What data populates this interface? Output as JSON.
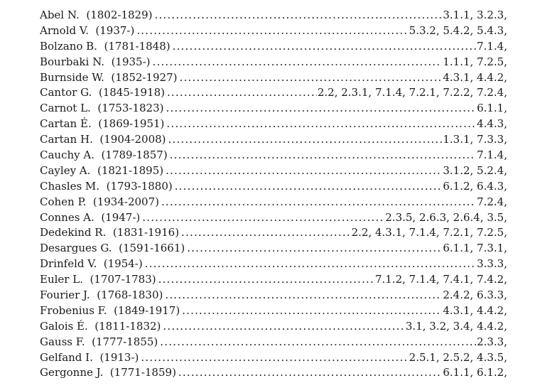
{
  "index": {
    "entries": [
      {
        "name": "Abel N.",
        "years": "(1802-1829)",
        "refs": "3.1.1, 3.2.3,"
      },
      {
        "name": "Arnold V.",
        "years": "(1937-)",
        "refs": "5.3.2, 5.4.2, 5.4.3,"
      },
      {
        "name": "Bolzano B.",
        "years": "(1781-1848)",
        "refs": "7.1.4,"
      },
      {
        "name": "Bourbaki N.",
        "years": "(1935-)",
        "refs": "1.1.1, 7.2.5,"
      },
      {
        "name": "Burnside W.",
        "years": "(1852-1927)",
        "refs": "4.3.1, 4.4.2,"
      },
      {
        "name": "Cantor G.",
        "years": "(1845-1918)",
        "refs": "2.2, 2.3.1, 7.1.4, 7.2.1, 7.2.2, 7.2.4,"
      },
      {
        "name": "Carnot L.",
        "years": "(1753-1823)",
        "refs": "6.1.1,"
      },
      {
        "name": "Cartan É.",
        "years": "(1869-1951)",
        "refs": "4.4.3,"
      },
      {
        "name": "Cartan H.",
        "years": "(1904-2008)",
        "refs": "1.3.1, 7.3.3,"
      },
      {
        "name": "Cauchy A.",
        "years": "(1789-1857)",
        "refs": "7.1.4,"
      },
      {
        "name": "Cayley A.",
        "years": "(1821-1895)",
        "refs": "3.1.2, 5.2.4,"
      },
      {
        "name": "Chasles M.",
        "years": "(1793-1880)",
        "refs": "6.1.2, 6.4.3,"
      },
      {
        "name": "Cohen P.",
        "years": "(1934-2007)",
        "refs": "7.2.4,"
      },
      {
        "name": "Connes A.",
        "years": "(1947-)",
        "refs": "2.3.5, 2.6.3, 2.6.4, 3.5,"
      },
      {
        "name": "Dedekind R.",
        "years": "(1831-1916)",
        "refs": "2.2, 4.3.1, 7.1.4, 7.2.1, 7.2.5,"
      },
      {
        "name": "Desargues G.",
        "years": "(1591-1661)",
        "refs": "6.1.1, 7.3.1,"
      },
      {
        "name": "Drinfeld V.",
        "years": "(1954-)",
        "refs": "3.3.3,"
      },
      {
        "name": "Euler L.",
        "years": "(1707-1783)",
        "refs": "7.1.2, 7.1.4, 7.4.1, 7.4.2,"
      },
      {
        "name": "Fourier J.",
        "years": "(1768-1830)",
        "refs": "2.4.2, 6.3.3,"
      },
      {
        "name": "Frobenius F.",
        "years": "(1849-1917)",
        "refs": "4.3.1, 4.4.2,"
      },
      {
        "name": "Galois É.",
        "years": "(1811-1832)",
        "refs": "3.1, 3.2, 3.4, 4.4.2,"
      },
      {
        "name": "Gauss F.",
        "years": "(1777-1855)",
        "refs": "2.3.3,"
      },
      {
        "name": "Gelfand I.",
        "years": "(1913-)",
        "refs": "2.5.1, 2.5.2, 4.3.5,"
      },
      {
        "name": "Gergonne J.",
        "years": "(1771-1859)",
        "refs": "6.1.1, 6.1.2,"
      }
    ]
  }
}
